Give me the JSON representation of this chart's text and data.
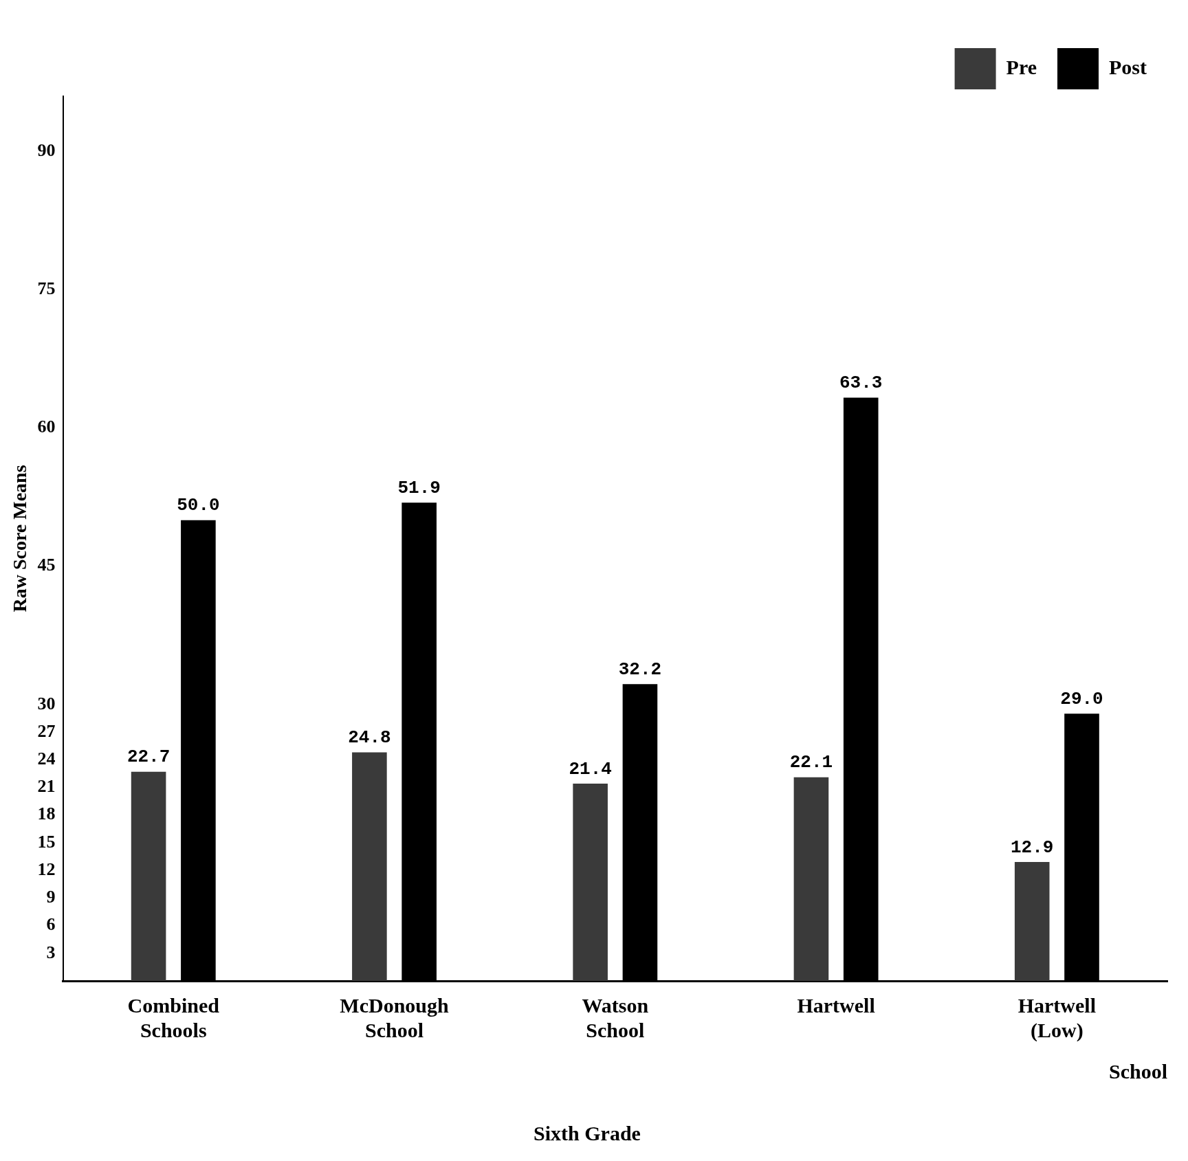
{
  "chart_data": {
    "type": "bar",
    "title": "Sixth Grade",
    "xlabel": "School",
    "ylabel": "Raw Score Means",
    "categories": [
      "Combined Schools",
      "McDonough School",
      "Watson School",
      "Hartwell",
      "Hartwell (Low)"
    ],
    "series": [
      {
        "name": "Pre",
        "color": "#3a3a3a",
        "values": [
          22.7,
          24.8,
          21.4,
          22.1,
          12.9
        ],
        "value_labels": [
          "22.7",
          "24.8",
          "21.4",
          "22.1",
          "12.9"
        ]
      },
      {
        "name": "Post",
        "color": "#000000",
        "values": [
          50.0,
          51.9,
          32.2,
          63.3,
          29.0
        ],
        "value_labels": [
          "50.0",
          "51.9",
          "32.2",
          "63.3",
          "29.0"
        ]
      }
    ],
    "ylim": [
      0,
      96
    ],
    "yticks": [
      3,
      6,
      9,
      12,
      15,
      18,
      21,
      24,
      27,
      30,
      45,
      60,
      75,
      90
    ],
    "grid": false,
    "legend": "top right"
  }
}
